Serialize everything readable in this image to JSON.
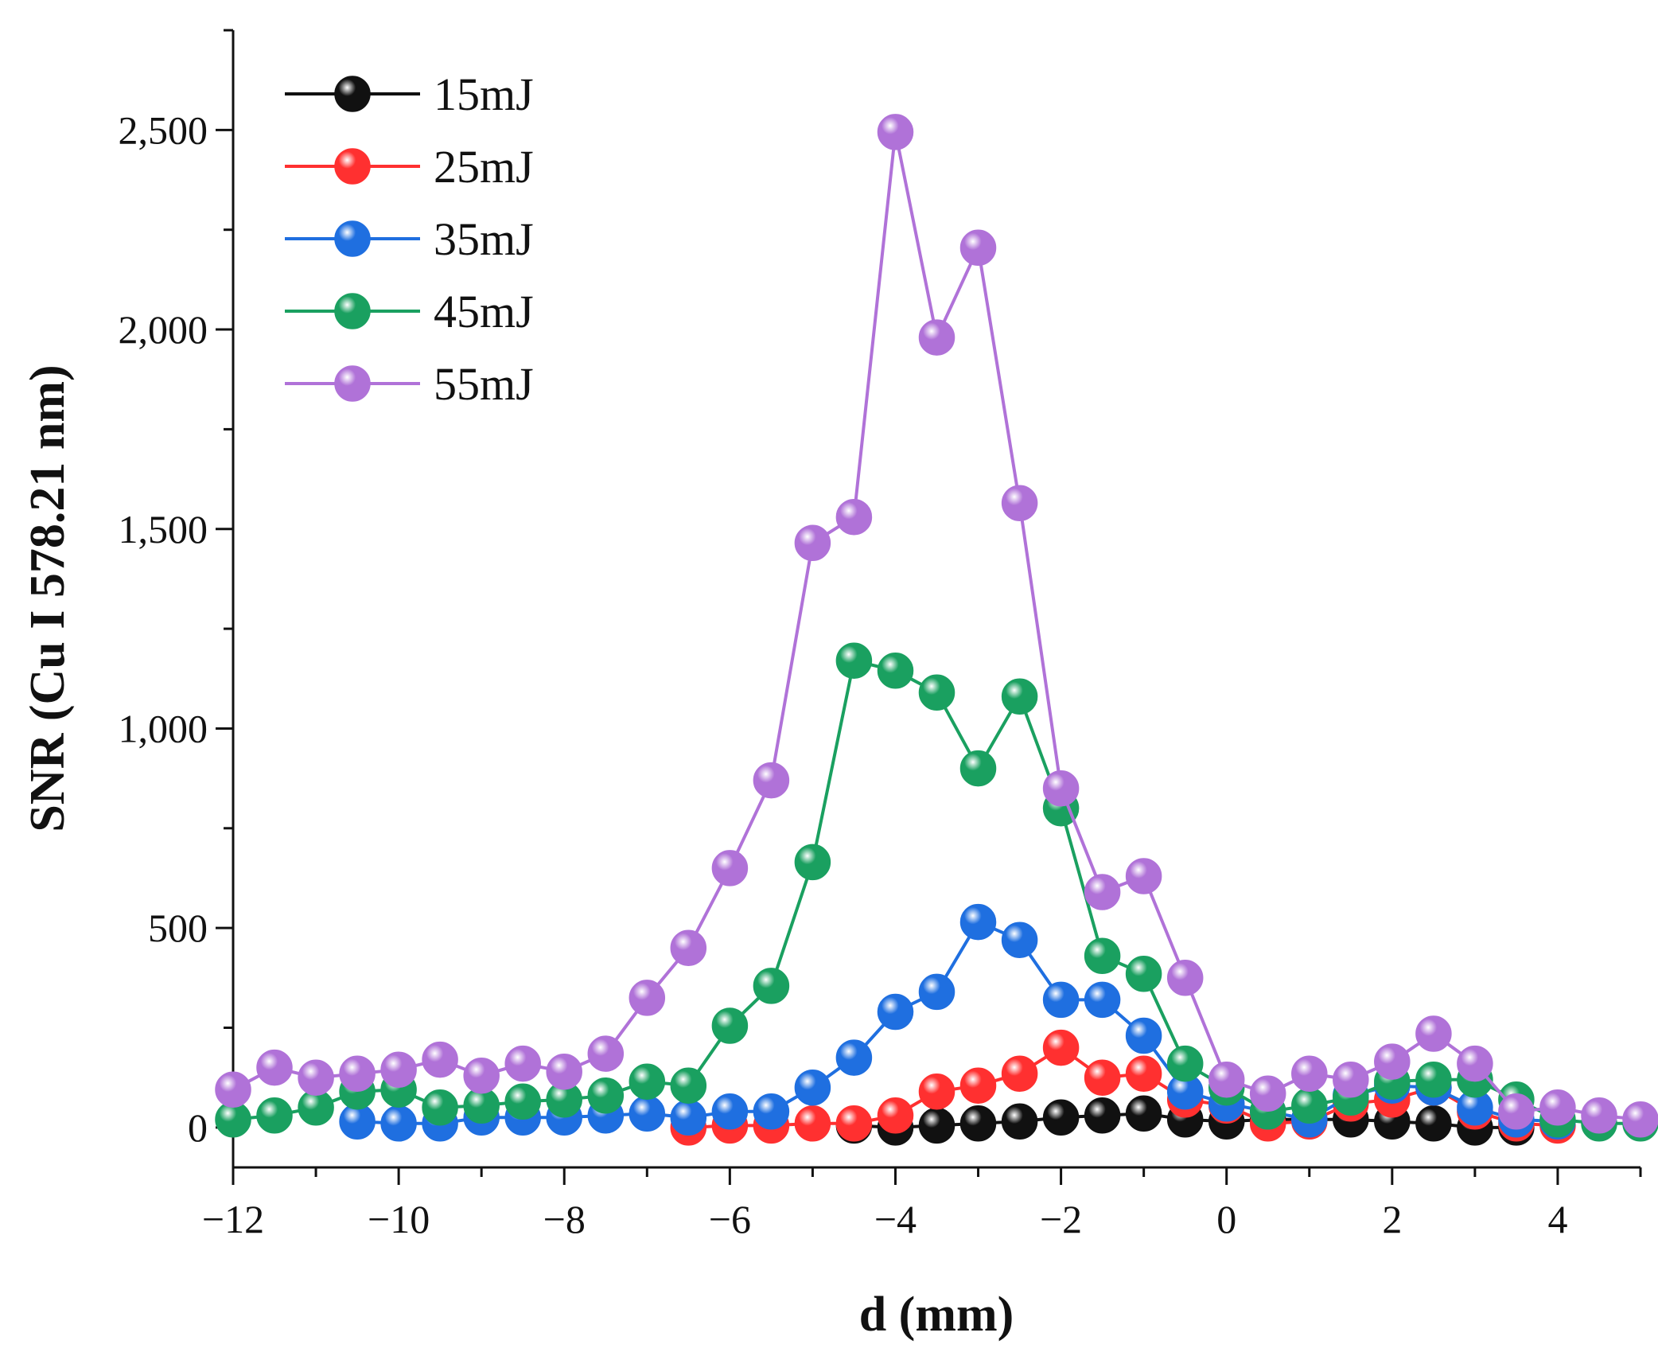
{
  "chart_data": {
    "type": "line",
    "xlabel": "d (mm)",
    "ylabel": "SNR (Cu I 578.21 nm)",
    "xlim": [
      -12,
      5
    ],
    "ylim": [
      -100,
      2750
    ],
    "xticks": [
      -12,
      -10,
      -8,
      -6,
      -4,
      -2,
      0,
      2,
      4
    ],
    "xtick_labels": [
      "−12",
      "−10",
      "−8",
      "−6",
      "−4",
      "−2",
      "0",
      "2",
      "4"
    ],
    "yticks": [
      0,
      500,
      1000,
      1500,
      2000,
      2500
    ],
    "ytick_labels": [
      "0",
      "500",
      "1,000",
      "1,500",
      "2,000",
      "2,500"
    ],
    "legend_position": "top-left",
    "series": [
      {
        "name": "15mJ",
        "color": "#111111",
        "x": [
          -4.5,
          -4,
          -3.5,
          -3,
          -2.5,
          -2,
          -1.5,
          -1,
          -0.5,
          0,
          0.5,
          1,
          1.5,
          2,
          2.5,
          3,
          3.5
        ],
        "values": [
          5,
          0,
          5,
          10,
          15,
          25,
          30,
          35,
          20,
          15,
          20,
          20,
          20,
          15,
          10,
          0,
          0
        ]
      },
      {
        "name": "25mJ",
        "color": "#ff3030",
        "x": [
          -6.5,
          -6,
          -5.5,
          -5,
          -4.5,
          -4,
          -3.5,
          -3,
          -2.5,
          -2,
          -1.5,
          -1,
          -0.5,
          0,
          0.5,
          1,
          1.5,
          2,
          2.5,
          3,
          3.5,
          4
        ],
        "values": [
          0,
          5,
          5,
          10,
          10,
          30,
          90,
          105,
          135,
          200,
          125,
          135,
          70,
          55,
          10,
          15,
          60,
          70,
          100,
          40,
          10,
          5
        ]
      },
      {
        "name": "35mJ",
        "color": "#1f6fe0",
        "x": [
          -10.5,
          -10,
          -9.5,
          -9,
          -8.5,
          -8,
          -7.5,
          -7,
          -6.5,
          -6,
          -5.5,
          -5,
          -4.5,
          -4,
          -3.5,
          -3,
          -2.5,
          -2,
          -1.5,
          -1,
          -0.5,
          0,
          0.5,
          1,
          1.5,
          2,
          2.5,
          3,
          3.5,
          4
        ],
        "values": [
          15,
          10,
          10,
          25,
          25,
          25,
          30,
          35,
          25,
          40,
          40,
          100,
          175,
          290,
          340,
          515,
          470,
          320,
          320,
          230,
          90,
          60,
          40,
          20,
          80,
          105,
          100,
          50,
          20,
          15
        ]
      },
      {
        "name": "45mJ",
        "color": "#1aa060",
        "x": [
          -12,
          -11.5,
          -11,
          -10.5,
          -10,
          -9.5,
          -9,
          -8.5,
          -8,
          -7.5,
          -7,
          -6.5,
          -6,
          -5.5,
          -5,
          -4.5,
          -4,
          -3.5,
          -3,
          -2.5,
          -2,
          -1.5,
          -1,
          -0.5,
          0,
          0.5,
          1,
          1.5,
          2,
          2.5,
          3,
          3.5,
          4,
          4.5,
          5
        ],
        "values": [
          20,
          30,
          50,
          90,
          95,
          50,
          55,
          65,
          70,
          80,
          115,
          105,
          255,
          355,
          665,
          1170,
          1145,
          1090,
          900,
          1080,
          800,
          430,
          385,
          160,
          100,
          40,
          55,
          75,
          115,
          120,
          120,
          70,
          20,
          10,
          10
        ]
      },
      {
        "name": "55mJ",
        "color": "#b072d8",
        "x": [
          -12,
          -11.5,
          -11,
          -10.5,
          -10,
          -9.5,
          -9,
          -8.5,
          -8,
          -7.5,
          -7,
          -6.5,
          -6,
          -5.5,
          -5,
          -4.5,
          -4,
          -3.5,
          -3,
          -2.5,
          -2,
          -1.5,
          -1,
          -0.5,
          0,
          0.5,
          1,
          1.5,
          2,
          2.5,
          3,
          3.5,
          4,
          4.5,
          5
        ],
        "values": [
          95,
          150,
          125,
          135,
          145,
          170,
          130,
          160,
          140,
          185,
          325,
          450,
          650,
          870,
          1465,
          1530,
          2495,
          1980,
          2205,
          1565,
          850,
          590,
          630,
          375,
          120,
          85,
          135,
          120,
          165,
          235,
          160,
          40,
          50,
          30,
          20
        ]
      }
    ]
  }
}
